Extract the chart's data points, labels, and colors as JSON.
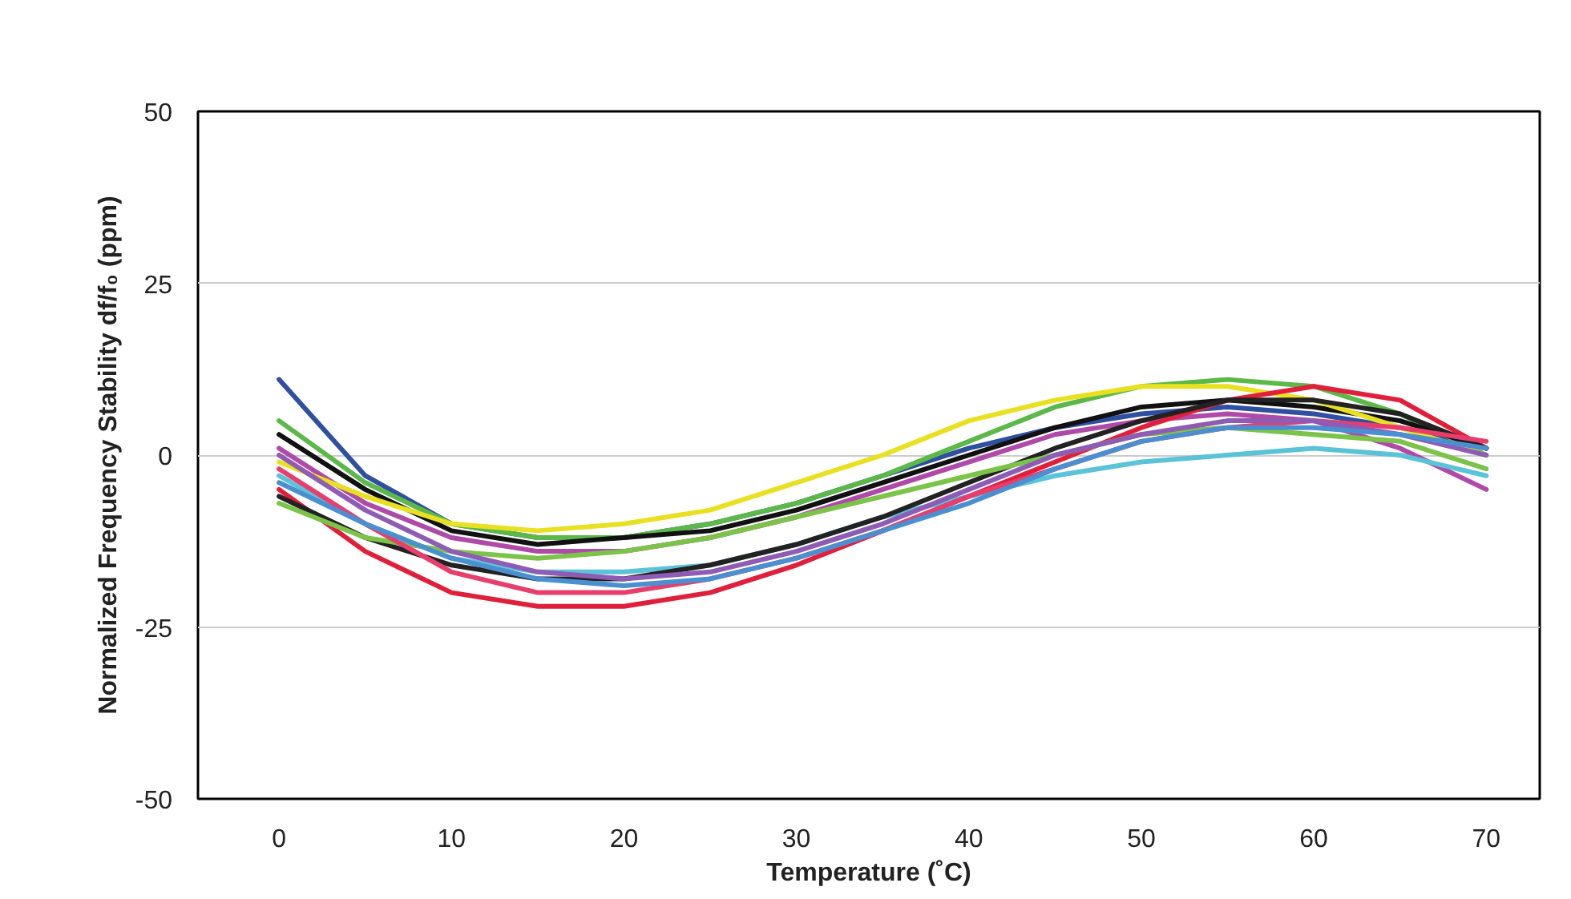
{
  "chart_data": {
    "type": "line",
    "xlabel": "Temperature (˚C)",
    "ylabel": "Normalized Frequency Stability df/f₀ (ppm)",
    "x": [
      0,
      5,
      10,
      15,
      20,
      25,
      30,
      35,
      40,
      45,
      50,
      55,
      60,
      65,
      70
    ],
    "xlim": [
      -4.7,
      73.1
    ],
    "xticks": [
      0,
      10,
      20,
      30,
      40,
      50,
      60,
      70
    ],
    "ylim": [
      -50,
      50
    ],
    "yticks": [
      -50,
      -25,
      0,
      25,
      50
    ],
    "grid": "y",
    "marker": "none",
    "line_style": "solid",
    "series": [
      {
        "color": "#2f4fa0",
        "values": [
          11,
          -3,
          -10,
          -12,
          -12,
          -10,
          -7,
          -3,
          1,
          4,
          6,
          7,
          6,
          4,
          1
        ]
      },
      {
        "color": "#5cb848",
        "values": [
          5,
          -4,
          -10,
          -12,
          -12,
          -10,
          -7,
          -3,
          2,
          7,
          10,
          11,
          10,
          6,
          0
        ]
      },
      {
        "color": "#111111",
        "values": [
          3,
          -5,
          -11,
          -13,
          -12,
          -11,
          -8,
          -4,
          0,
          4,
          7,
          8,
          7,
          5,
          1
        ]
      },
      {
        "color": "#b04aa8",
        "values": [
          1,
          -7,
          -12,
          -14,
          -14,
          -12,
          -9,
          -5,
          -1,
          3,
          5,
          6,
          5,
          1,
          -5
        ]
      },
      {
        "color": "#e8e020",
        "values": [
          -1,
          -6,
          -10,
          -11,
          -10,
          -8,
          -4,
          0,
          5,
          8,
          10,
          10,
          8,
          4,
          0
        ]
      },
      {
        "color": "#5bc3d8",
        "values": [
          -3,
          -10,
          -15,
          -17,
          -17,
          -16,
          -13,
          -9,
          -6,
          -3,
          -1,
          0,
          1,
          0,
          -3
        ]
      },
      {
        "color": "#e0203a",
        "values": [
          -5,
          -14,
          -20,
          -22,
          -22,
          -20,
          -16,
          -11,
          -6,
          -1,
          4,
          8,
          10,
          8,
          1
        ]
      },
      {
        "color": "#222222",
        "values": [
          -6,
          -12,
          -16,
          -18,
          -18,
          -16,
          -13,
          -9,
          -4,
          1,
          5,
          8,
          8,
          6,
          1
        ]
      },
      {
        "color": "#7cc34a",
        "values": [
          -7,
          -12,
          -14,
          -15,
          -14,
          -12,
          -9,
          -6,
          -3,
          0,
          3,
          4,
          3,
          2,
          -2
        ]
      },
      {
        "color": "#e83e6e",
        "values": [
          -2,
          -10,
          -17,
          -20,
          -20,
          -18,
          -15,
          -11,
          -6,
          -2,
          2,
          4,
          5,
          4,
          2
        ]
      },
      {
        "color": "#8e5bb5",
        "values": [
          0,
          -8,
          -14,
          -17,
          -18,
          -17,
          -14,
          -10,
          -5,
          0,
          3,
          5,
          5,
          3,
          0
        ]
      },
      {
        "color": "#4a90d0",
        "values": [
          -4,
          -10,
          -15,
          -18,
          -19,
          -18,
          -15,
          -11,
          -7,
          -2,
          2,
          4,
          4,
          3,
          1
        ]
      }
    ]
  }
}
